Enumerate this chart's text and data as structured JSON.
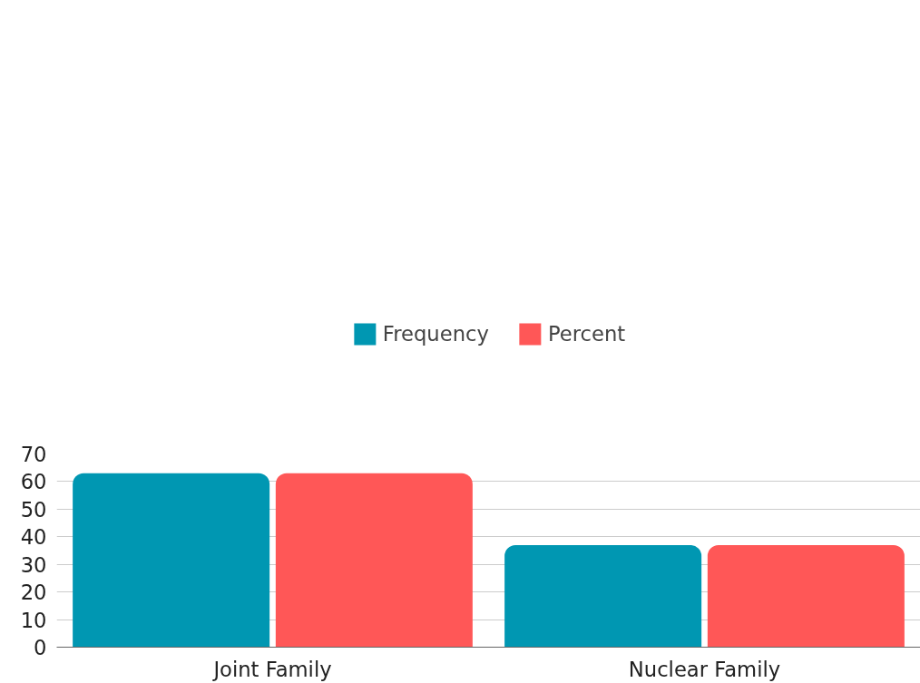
{
  "chart_data": {
    "type": "bar",
    "categories": [
      "Joint Family",
      "Nuclear Family"
    ],
    "series": [
      {
        "name": "Frequency",
        "color": "#0097b2",
        "values": [
          63,
          37
        ]
      },
      {
        "name": "Percent",
        "color": "#ff5757",
        "values": [
          63,
          37
        ]
      }
    ],
    "ylim": [
      0,
      70
    ],
    "yticks": [
      0,
      10,
      20,
      30,
      40,
      50,
      60,
      70
    ],
    "grid": "y",
    "legend": "top"
  }
}
